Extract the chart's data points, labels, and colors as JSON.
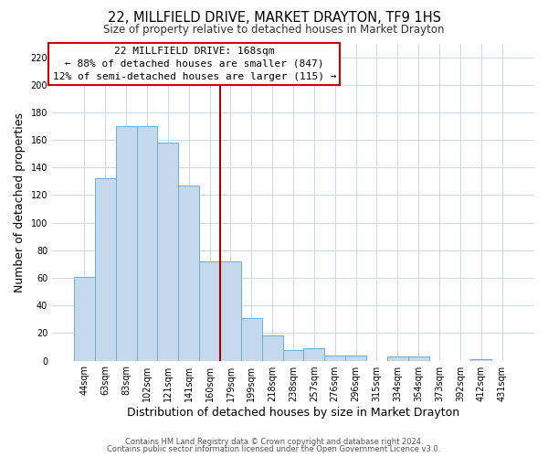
{
  "title": "22, MILLFIELD DRIVE, MARKET DRAYTON, TF9 1HS",
  "subtitle": "Size of property relative to detached houses in Market Drayton",
  "xlabel": "Distribution of detached houses by size in Market Drayton",
  "ylabel": "Number of detached properties",
  "bar_labels": [
    "44sqm",
    "63sqm",
    "83sqm",
    "102sqm",
    "121sqm",
    "141sqm",
    "160sqm",
    "179sqm",
    "199sqm",
    "218sqm",
    "238sqm",
    "257sqm",
    "276sqm",
    "296sqm",
    "315sqm",
    "334sqm",
    "354sqm",
    "373sqm",
    "392sqm",
    "412sqm",
    "431sqm"
  ],
  "bar_values": [
    61,
    132,
    170,
    170,
    158,
    127,
    72,
    72,
    31,
    18,
    8,
    9,
    4,
    4,
    0,
    3,
    3,
    0,
    0,
    1,
    0
  ],
  "bar_color": "#c5d9ec",
  "bar_edge_color": "#6aaed6",
  "ylim": [
    0,
    230
  ],
  "yticks": [
    0,
    20,
    40,
    60,
    80,
    100,
    120,
    140,
    160,
    180,
    200,
    220
  ],
  "property_line_color": "#aa0000",
  "annotation_title": "22 MILLFIELD DRIVE: 168sqm",
  "annotation_line1": "← 88% of detached houses are smaller (847)",
  "annotation_line2": "12% of semi-detached houses are larger (115) →",
  "annotation_box_color": "#ffffff",
  "annotation_box_edge": "#cc0000",
  "footer1": "Contains HM Land Registry data © Crown copyright and database right 2024.",
  "footer2": "Contains public sector information licensed under the Open Government Licence v3.0.",
  "title_fontsize": 10.5,
  "subtitle_fontsize": 8.5,
  "axis_label_fontsize": 9,
  "tick_fontsize": 7,
  "annotation_fontsize": 8,
  "footer_fontsize": 6
}
